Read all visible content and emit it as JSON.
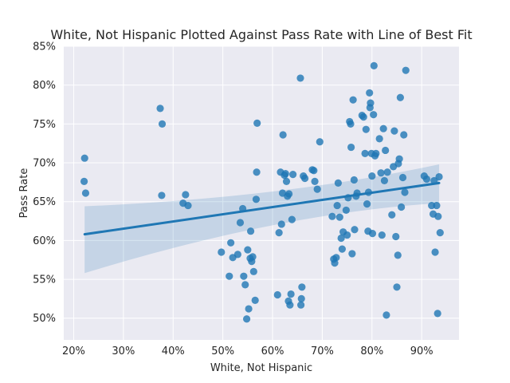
{
  "chart_data": {
    "type": "scatter",
    "title": "White, Not Hispanic Plotted Against Pass Rate with Line of Best Fit",
    "xlabel": "White, Not Hispanic",
    "ylabel": "Pass Rate",
    "xlim": [
      0.18,
      0.975
    ],
    "ylim": [
      0.472,
      0.85
    ],
    "x_ticks": [
      0.2,
      0.3,
      0.4,
      0.5,
      0.6,
      0.7,
      0.8,
      0.9
    ],
    "x_tick_labels": [
      "20%",
      "30%",
      "40%",
      "50%",
      "60%",
      "70%",
      "80%",
      "90%"
    ],
    "y_ticks": [
      0.5,
      0.55,
      0.6,
      0.65,
      0.7,
      0.75,
      0.8,
      0.85
    ],
    "y_tick_labels": [
      "50%",
      "55%",
      "60%",
      "65%",
      "70%",
      "75%",
      "80%",
      "85%"
    ],
    "grid": true,
    "regression": {
      "x": [
        0.222,
        0.935
      ],
      "y": [
        0.608,
        0.674
      ],
      "ci_lower": [
        0.558,
        0.648
      ],
      "ci_upper": [
        0.644,
        0.698
      ],
      "ci_center_x": 0.62,
      "ci_center_lower": 0.636,
      "ci_center_upper": 0.655
    },
    "points": [
      [
        0.222,
        0.706
      ],
      [
        0.221,
        0.676
      ],
      [
        0.224,
        0.661
      ],
      [
        0.374,
        0.77
      ],
      [
        0.378,
        0.75
      ],
      [
        0.377,
        0.658
      ],
      [
        0.42,
        0.648
      ],
      [
        0.425,
        0.659
      ],
      [
        0.43,
        0.645
      ],
      [
        0.497,
        0.585
      ],
      [
        0.513,
        0.554
      ],
      [
        0.516,
        0.597
      ],
      [
        0.52,
        0.578
      ],
      [
        0.53,
        0.582
      ],
      [
        0.535,
        0.623
      ],
      [
        0.54,
        0.641
      ],
      [
        0.542,
        0.554
      ],
      [
        0.545,
        0.543
      ],
      [
        0.548,
        0.499
      ],
      [
        0.55,
        0.588
      ],
      [
        0.552,
        0.512
      ],
      [
        0.555,
        0.577
      ],
      [
        0.556,
        0.612
      ],
      [
        0.558,
        0.573
      ],
      [
        0.56,
        0.579
      ],
      [
        0.562,
        0.56
      ],
      [
        0.565,
        0.523
      ],
      [
        0.567,
        0.653
      ],
      [
        0.568,
        0.688
      ],
      [
        0.569,
        0.751
      ],
      [
        0.61,
        0.53
      ],
      [
        0.613,
        0.61
      ],
      [
        0.616,
        0.688
      ],
      [
        0.618,
        0.621
      ],
      [
        0.62,
        0.661
      ],
      [
        0.621,
        0.736
      ],
      [
        0.624,
        0.684
      ],
      [
        0.626,
        0.686
      ],
      [
        0.628,
        0.676
      ],
      [
        0.63,
        0.657
      ],
      [
        0.632,
        0.522
      ],
      [
        0.633,
        0.66
      ],
      [
        0.635,
        0.517
      ],
      [
        0.637,
        0.531
      ],
      [
        0.639,
        0.627
      ],
      [
        0.641,
        0.685
      ],
      [
        0.656,
        0.809
      ],
      [
        0.657,
        0.517
      ],
      [
        0.658,
        0.525
      ],
      [
        0.659,
        0.54
      ],
      [
        0.662,
        0.683
      ],
      [
        0.665,
        0.68
      ],
      [
        0.68,
        0.691
      ],
      [
        0.683,
        0.69
      ],
      [
        0.685,
        0.676
      ],
      [
        0.69,
        0.666
      ],
      [
        0.695,
        0.727
      ],
      [
        0.72,
        0.631
      ],
      [
        0.723,
        0.576
      ],
      [
        0.725,
        0.571
      ],
      [
        0.728,
        0.578
      ],
      [
        0.73,
        0.645
      ],
      [
        0.732,
        0.674
      ],
      [
        0.735,
        0.63
      ],
      [
        0.738,
        0.603
      ],
      [
        0.74,
        0.589
      ],
      [
        0.742,
        0.611
      ],
      [
        0.748,
        0.639
      ],
      [
        0.75,
        0.607
      ],
      [
        0.752,
        0.655
      ],
      [
        0.755,
        0.753
      ],
      [
        0.757,
        0.75
      ],
      [
        0.758,
        0.72
      ],
      [
        0.76,
        0.583
      ],
      [
        0.762,
        0.781
      ],
      [
        0.764,
        0.678
      ],
      [
        0.765,
        0.614
      ],
      [
        0.768,
        0.657
      ],
      [
        0.77,
        0.661
      ],
      [
        0.78,
        0.761
      ],
      [
        0.783,
        0.759
      ],
      [
        0.786,
        0.712
      ],
      [
        0.788,
        0.743
      ],
      [
        0.79,
        0.647
      ],
      [
        0.792,
        0.612
      ],
      [
        0.793,
        0.662
      ],
      [
        0.795,
        0.79
      ],
      [
        0.796,
        0.771
      ],
      [
        0.797,
        0.777
      ],
      [
        0.799,
        0.712
      ],
      [
        0.8,
        0.683
      ],
      [
        0.801,
        0.609
      ],
      [
        0.803,
        0.762
      ],
      [
        0.804,
        0.825
      ],
      [
        0.806,
        0.709
      ],
      [
        0.808,
        0.712
      ],
      [
        0.815,
        0.731
      ],
      [
        0.818,
        0.687
      ],
      [
        0.82,
        0.607
      ],
      [
        0.823,
        0.744
      ],
      [
        0.825,
        0.677
      ],
      [
        0.827,
        0.716
      ],
      [
        0.829,
        0.504
      ],
      [
        0.831,
        0.688
      ],
      [
        0.84,
        0.633
      ],
      [
        0.843,
        0.695
      ],
      [
        0.845,
        0.741
      ],
      [
        0.848,
        0.605
      ],
      [
        0.85,
        0.54
      ],
      [
        0.852,
        0.581
      ],
      [
        0.853,
        0.699
      ],
      [
        0.855,
        0.705
      ],
      [
        0.857,
        0.784
      ],
      [
        0.859,
        0.643
      ],
      [
        0.862,
        0.681
      ],
      [
        0.864,
        0.736
      ],
      [
        0.866,
        0.662
      ],
      [
        0.868,
        0.819
      ],
      [
        0.905,
        0.683
      ],
      [
        0.91,
        0.679
      ],
      [
        0.92,
        0.645
      ],
      [
        0.923,
        0.634
      ],
      [
        0.925,
        0.677
      ],
      [
        0.927,
        0.585
      ],
      [
        0.93,
        0.645
      ],
      [
        0.932,
        0.506
      ],
      [
        0.933,
        0.631
      ],
      [
        0.935,
        0.682
      ],
      [
        0.937,
        0.61
      ]
    ]
  }
}
